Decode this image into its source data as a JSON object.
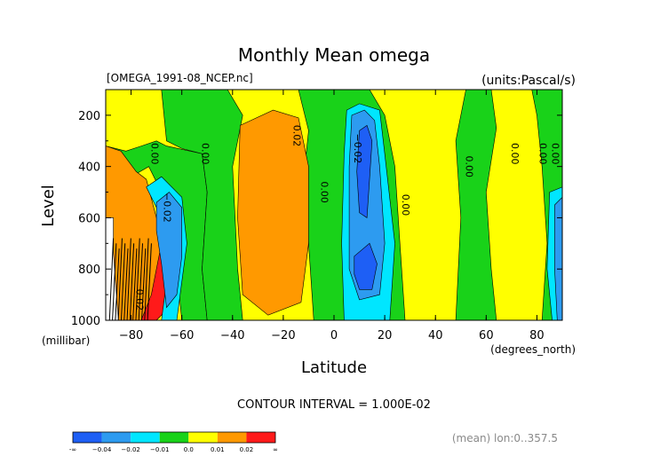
{
  "chart_data": {
    "type": "heatmap",
    "title": "Monthly Mean omega",
    "file_label": "[OMEGA_1991-08_NCEP.nc]",
    "units_label": "(units:Pascal/s)",
    "xlabel": "Latitude",
    "ylabel": "Level",
    "y_unit_label": "(millibar)",
    "x_unit_label": "(degrees_north)",
    "xlim": [
      -90,
      90
    ],
    "ylim": [
      1000,
      100
    ],
    "x_ticks": [
      {
        "v": -80,
        "label": "−80"
      },
      {
        "v": -60,
        "label": "−60"
      },
      {
        "v": -40,
        "label": "−40"
      },
      {
        "v": -20,
        "label": "−20"
      },
      {
        "v": 0,
        "label": "0"
      },
      {
        "v": 20,
        "label": "20"
      },
      {
        "v": 40,
        "label": "40"
      },
      {
        "v": 60,
        "label": "60"
      },
      {
        "v": 80,
        "label": "80"
      }
    ],
    "y_ticks": [
      {
        "v": 200,
        "label": "200"
      },
      {
        "v": 400,
        "label": "400"
      },
      {
        "v": 600,
        "label": "600"
      },
      {
        "v": 800,
        "label": "800"
      },
      {
        "v": 1000,
        "label": "1000"
      }
    ],
    "contour_interval_label": "CONTOUR INTERVAL = 1.000E-02",
    "averaging_label": "(mean) lon:0..357.5",
    "colorbar": {
      "colors": [
        "#1e5ff5",
        "#2d9bf0",
        "#00e6ff",
        "#19d219",
        "#ffff00",
        "#ff9900",
        "#ff1a1a"
      ],
      "labels": [
        "-∞",
        "−0.04",
        "−0.02",
        "−0.01",
        "0.0",
        "0.01",
        "0.02",
        "∞"
      ]
    },
    "level_colors": {
      "strong_ascent": "#1e5ff5",
      "ascent": "#2d9bf0",
      "weak_ascent": "#00e6ff",
      "near_zero_neg": "#19d219",
      "near_zero_pos": "#ffff00",
      "descent": "#ff9900",
      "strong_descent": "#ff1a1a",
      "missing": "#ffffff"
    },
    "regions": [
      {
        "level": "strong_descent",
        "poly": [
          [
            -90,
            470
          ],
          [
            -85,
            600
          ],
          [
            -82,
            650
          ],
          [
            -80,
            600
          ],
          [
            -78,
            680
          ],
          [
            -76,
            800
          ],
          [
            -73,
            950
          ],
          [
            -75,
            1000
          ],
          [
            -90,
            1000
          ]
        ]
      },
      {
        "level": "strong_descent",
        "poly": [
          [
            -78,
            660
          ],
          [
            -72,
            640
          ],
          [
            -67,
            700
          ],
          [
            -64,
            820
          ],
          [
            -65,
            950
          ],
          [
            -70,
            1000
          ],
          [
            -76,
            1000
          ],
          [
            -78,
            850
          ]
        ]
      },
      {
        "level": "strong_descent",
        "poly": [
          [
            -35,
            250
          ],
          [
            -22,
            220
          ],
          [
            -16,
            250
          ],
          [
            -12,
            450
          ],
          [
            -12,
            700
          ],
          [
            -15,
            880
          ],
          [
            -24,
            900
          ],
          [
            -32,
            850
          ],
          [
            -34,
            600
          ],
          [
            -36,
            350
          ]
        ]
      },
      {
        "level": "near_zero_neg",
        "poly": [
          [
            -90,
            100
          ],
          [
            -90,
            320
          ],
          [
            -82,
            340
          ],
          [
            -76,
            320
          ],
          [
            -70,
            300
          ],
          [
            -66,
            320
          ],
          [
            -52,
            350
          ],
          [
            -50,
            500
          ],
          [
            -52,
            800
          ],
          [
            -50,
            1000
          ],
          [
            -60,
            1000
          ],
          [
            -62,
            800
          ],
          [
            -66,
            650
          ],
          [
            -68,
            500
          ],
          [
            -73,
            400
          ],
          [
            -80,
            440
          ],
          [
            -90,
            460
          ]
        ]
      },
      {
        "level": "near_zero_neg",
        "poly": [
          [
            -68,
            100
          ],
          [
            -42,
            100
          ],
          [
            -36,
            200
          ],
          [
            -40,
            400
          ],
          [
            -38,
            800
          ],
          [
            -36,
            1000
          ],
          [
            -50,
            1000
          ],
          [
            -52,
            800
          ],
          [
            -50,
            500
          ],
          [
            -52,
            350
          ],
          [
            -60,
            330
          ],
          [
            -66,
            300
          ]
        ]
      },
      {
        "level": "near_zero_neg",
        "poly": [
          [
            -14,
            100
          ],
          [
            14,
            100
          ],
          [
            20,
            200
          ],
          [
            24,
            400
          ],
          [
            26,
            700
          ],
          [
            28,
            1000
          ],
          [
            -8,
            1000
          ],
          [
            -10,
            700
          ],
          [
            -12,
            450
          ],
          [
            -10,
            260
          ]
        ]
      },
      {
        "level": "near_zero_neg",
        "poly": [
          [
            52,
            100
          ],
          [
            62,
            100
          ],
          [
            64,
            250
          ],
          [
            60,
            500
          ],
          [
            62,
            800
          ],
          [
            64,
            1000
          ],
          [
            48,
            1000
          ],
          [
            50,
            600
          ],
          [
            48,
            300
          ]
        ]
      },
      {
        "level": "near_zero_neg",
        "poly": [
          [
            78,
            100
          ],
          [
            90,
            100
          ],
          [
            90,
            1000
          ],
          [
            82,
            1000
          ],
          [
            84,
            700
          ],
          [
            82,
            400
          ],
          [
            80,
            200
          ]
        ]
      },
      {
        "level": "descent",
        "poly": [
          [
            -90,
            320
          ],
          [
            -84,
            340
          ],
          [
            -78,
            420
          ],
          [
            -74,
            450
          ],
          [
            -70,
            600
          ],
          [
            -68,
            700
          ],
          [
            -70,
            800
          ],
          [
            -72,
            900
          ],
          [
            -76,
            1000
          ],
          [
            -90,
            1000
          ]
        ]
      },
      {
        "level": "descent",
        "poly": [
          [
            -37,
            240
          ],
          [
            -24,
            180
          ],
          [
            -14,
            210
          ],
          [
            -10,
            400
          ],
          [
            -10,
            700
          ],
          [
            -13,
            930
          ],
          [
            -26,
            980
          ],
          [
            -36,
            900
          ],
          [
            -38,
            600
          ]
        ]
      },
      {
        "level": "weak_ascent",
        "poly": [
          [
            -74,
            480
          ],
          [
            -68,
            440
          ],
          [
            -60,
            520
          ],
          [
            -58,
            700
          ],
          [
            -60,
            850
          ],
          [
            -62,
            1000
          ],
          [
            -68,
            1000
          ],
          [
            -66,
            850
          ],
          [
            -68,
            700
          ],
          [
            -70,
            560
          ]
        ]
      },
      {
        "level": "weak_ascent",
        "poly": [
          [
            5,
            180
          ],
          [
            10,
            155
          ],
          [
            18,
            180
          ],
          [
            20,
            350
          ],
          [
            24,
            700
          ],
          [
            22,
            1000
          ],
          [
            4,
            1000
          ],
          [
            3,
            700
          ],
          [
            4,
            350
          ]
        ]
      },
      {
        "level": "weak_ascent",
        "poly": [
          [
            85,
            500
          ],
          [
            90,
            480
          ],
          [
            90,
            1000
          ],
          [
            86,
            1000
          ],
          [
            84,
            800
          ]
        ]
      },
      {
        "level": "ascent",
        "poly": [
          [
            -70,
            540
          ],
          [
            -65,
            500
          ],
          [
            -60,
            560
          ],
          [
            -60,
            750
          ],
          [
            -62,
            900
          ],
          [
            -66,
            950
          ],
          [
            -68,
            780
          ],
          [
            -70,
            650
          ]
        ]
      },
      {
        "level": "ascent",
        "poly": [
          [
            7,
            200
          ],
          [
            12,
            180
          ],
          [
            16,
            220
          ],
          [
            18,
            400
          ],
          [
            20,
            700
          ],
          [
            18,
            900
          ],
          [
            10,
            920
          ],
          [
            6,
            800
          ],
          [
            6,
            400
          ]
        ]
      },
      {
        "level": "ascent",
        "poly": [
          [
            87,
            550
          ],
          [
            90,
            520
          ],
          [
            90,
            1000
          ],
          [
            88,
            1000
          ],
          [
            87,
            800
          ]
        ]
      },
      {
        "level": "strong_ascent",
        "poly": [
          [
            10,
            260
          ],
          [
            13,
            240
          ],
          [
            15,
            300
          ],
          [
            14,
            450
          ],
          [
            13,
            600
          ],
          [
            10,
            580
          ],
          [
            9,
            420
          ]
        ]
      },
      {
        "level": "strong_ascent",
        "poly": [
          [
            8,
            750
          ],
          [
            14,
            700
          ],
          [
            17,
            780
          ],
          [
            15,
            880
          ],
          [
            10,
            880
          ],
          [
            8,
            820
          ]
        ]
      },
      {
        "level": "missing",
        "poly": [
          [
            -90,
            600
          ],
          [
            -87,
            600
          ],
          [
            -87,
            730
          ],
          [
            -86,
            870
          ],
          [
            -85,
            1000
          ],
          [
            -90,
            1000
          ]
        ]
      }
    ],
    "dense_contour_band": {
      "lat_from": -87,
      "lat_to": -72,
      "lev_from": 680,
      "lev_to": 1000,
      "count": 14
    },
    "contour_labels": [
      {
        "x": -72,
        "y": 350,
        "text": "0.00"
      },
      {
        "x": -67,
        "y": 560,
        "text": "−0.02"
      },
      {
        "x": -78,
        "y": 920,
        "text": "0.02"
      },
      {
        "x": -52,
        "y": 350,
        "text": "0.00"
      },
      {
        "x": -16,
        "y": 280,
        "text": "0.02"
      },
      {
        "x": -5,
        "y": 500,
        "text": "0.00"
      },
      {
        "x": 8,
        "y": 330,
        "text": "−0.02"
      },
      {
        "x": 27,
        "y": 550,
        "text": "0.00"
      },
      {
        "x": 52,
        "y": 400,
        "text": "0.00"
      },
      {
        "x": 70,
        "y": 350,
        "text": "0.00"
      },
      {
        "x": 81,
        "y": 350,
        "text": "0.00"
      },
      {
        "x": 86,
        "y": 350,
        "text": "0.00"
      }
    ]
  }
}
